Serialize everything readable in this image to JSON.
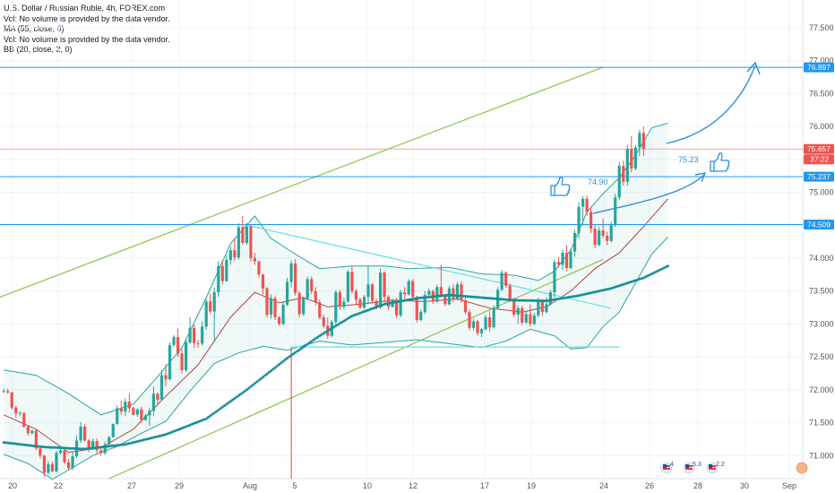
{
  "legend": {
    "title": "U.S. Dollar / Russian Ruble, 4h, FOREX.com",
    "vol1": "Vol: No volume is provided by the data vendor.",
    "ma": "MA (55, close, 0)",
    "vol2": "Vol: No volume is provided by the data vendor.",
    "bb": "BB (20, close, 2, 0)"
  },
  "colors": {
    "up": "#26a69a",
    "down": "#ef5350",
    "hline": "#2196f3",
    "price_line": "#f7a1a0",
    "channel": "#8bc34a",
    "bb_band": "#26a69a",
    "bb_basis": "#b0433a",
    "ma_dots": "#1a8f96",
    "triangle": "#66dde3",
    "arrow": "#2e8fd6",
    "thumb": "#2e8fd6",
    "grid": "#f0f3fa",
    "axis_text": "#50535e"
  },
  "chart_data": {
    "type": "candlestick",
    "symbol": "U.S. Dollar / Russian Ruble",
    "interval": "4h",
    "ylim": [
      70.65,
      77.92
    ],
    "y_ticks": [
      "77.500",
      "77.000",
      "76.500",
      "76.000",
      "75.500",
      "75.000",
      "74.500",
      "74.000",
      "73.500",
      "73.000",
      "72.500",
      "72.000",
      "71.500",
      "71.000"
    ],
    "x_ticks": [
      "20",
      "22",
      "27",
      "29",
      "Aug",
      "5",
      "10",
      "12",
      "17",
      "19",
      "24",
      "26",
      "28",
      "30",
      "Sep"
    ],
    "horizontal_levels": [
      {
        "label": "76.897",
        "value": 76.897,
        "kind": "line"
      },
      {
        "label": "75.657",
        "value": 75.657,
        "kind": "price"
      },
      {
        "label": "75.237",
        "value": 75.237,
        "kind": "line"
      },
      {
        "label": "74.509",
        "value": 74.509,
        "kind": "line"
      }
    ],
    "countdown": "37:22",
    "annotations": [
      "74.90",
      "75.23"
    ],
    "event_badges": [
      "4",
      "5.3",
      "2.2"
    ],
    "candles": [
      [
        71.97,
        72.02,
        71.95,
        71.98
      ],
      [
        71.98,
        72.02,
        71.94,
        71.96
      ],
      [
        71.96,
        71.97,
        71.7,
        71.73
      ],
      [
        71.73,
        71.76,
        71.58,
        71.64
      ],
      [
        71.64,
        71.67,
        71.6,
        71.65
      ],
      [
        71.65,
        71.65,
        71.42,
        71.44
      ],
      [
        71.44,
        71.45,
        71.3,
        71.34
      ],
      [
        71.34,
        71.39,
        71.32,
        71.38
      ],
      [
        71.38,
        71.39,
        71.08,
        71.11
      ],
      [
        71.11,
        71.13,
        70.96,
        71.0
      ],
      [
        71.0,
        71.01,
        70.68,
        70.74
      ],
      [
        70.74,
        70.92,
        70.71,
        70.87
      ],
      [
        70.87,
        70.91,
        70.75,
        70.76
      ],
      [
        70.76,
        71.08,
        70.74,
        71.04
      ],
      [
        71.04,
        71.15,
        71.02,
        71.08
      ],
      [
        71.08,
        71.09,
        70.87,
        70.9
      ],
      [
        70.9,
        70.95,
        70.78,
        70.81
      ],
      [
        70.81,
        71.05,
        70.78,
        70.99
      ],
      [
        70.99,
        71.31,
        70.96,
        71.23
      ],
      [
        71.23,
        71.51,
        71.19,
        71.44
      ],
      [
        71.44,
        71.48,
        71.21,
        71.23
      ],
      [
        71.23,
        71.25,
        71.05,
        71.11
      ],
      [
        71.11,
        71.26,
        71.08,
        71.22
      ],
      [
        71.22,
        71.26,
        71.03,
        71.08
      ],
      [
        71.08,
        71.12,
        71.0,
        71.04
      ],
      [
        71.04,
        71.21,
        71.01,
        71.17
      ],
      [
        71.17,
        71.3,
        71.13,
        71.28
      ],
      [
        71.28,
        71.49,
        71.27,
        71.48
      ],
      [
        71.48,
        71.76,
        71.47,
        71.72
      ],
      [
        71.72,
        71.84,
        71.62,
        71.67
      ],
      [
        71.67,
        71.87,
        71.6,
        71.82
      ],
      [
        71.82,
        71.94,
        71.65,
        71.72
      ],
      [
        71.72,
        71.74,
        71.61,
        71.62
      ],
      [
        71.62,
        71.72,
        71.59,
        71.7
      ],
      [
        71.7,
        71.74,
        71.5,
        71.54
      ],
      [
        71.54,
        71.64,
        71.53,
        71.61
      ],
      [
        71.61,
        71.73,
        71.45,
        71.68
      ],
      [
        71.68,
        72.05,
        71.6,
        71.94
      ],
      [
        71.94,
        71.96,
        71.78,
        71.85
      ],
      [
        71.85,
        72.3,
        71.83,
        72.22
      ],
      [
        72.22,
        72.39,
        72.05,
        72.16
      ],
      [
        72.16,
        72.72,
        72.14,
        72.68
      ],
      [
        72.68,
        72.83,
        72.65,
        72.8
      ],
      [
        72.8,
        72.93,
        72.5,
        72.55
      ],
      [
        72.55,
        72.62,
        72.24,
        72.3
      ],
      [
        72.3,
        72.76,
        72.27,
        72.72
      ],
      [
        72.72,
        73.1,
        72.7,
        72.94
      ],
      [
        72.94,
        72.99,
        72.63,
        72.71
      ],
      [
        72.71,
        72.76,
        72.64,
        72.7
      ],
      [
        72.7,
        73.04,
        72.67,
        72.96
      ],
      [
        72.96,
        73.38,
        72.91,
        73.34
      ],
      [
        73.34,
        73.46,
        73.15,
        73.19
      ],
      [
        73.19,
        73.55,
        72.73,
        73.48
      ],
      [
        73.48,
        73.95,
        73.41,
        73.88
      ],
      [
        73.88,
        73.97,
        73.6,
        73.65
      ],
      [
        73.65,
        74.04,
        73.64,
        73.97
      ],
      [
        73.97,
        74.17,
        73.9,
        74.12
      ],
      [
        74.12,
        74.3,
        73.96,
        74.01
      ],
      [
        74.01,
        74.53,
        73.98,
        74.47
      ],
      [
        74.47,
        74.64,
        74.2,
        74.23
      ],
      [
        74.23,
        74.53,
        74.2,
        74.48
      ],
      [
        74.48,
        74.5,
        73.95,
        74.0
      ],
      [
        74.0,
        74.08,
        73.9,
        73.95
      ],
      [
        73.95,
        73.96,
        73.7,
        73.75
      ],
      [
        73.75,
        73.76,
        73.45,
        73.54
      ],
      [
        73.54,
        73.56,
        73.1,
        73.14
      ],
      [
        73.14,
        73.45,
        73.08,
        73.39
      ],
      [
        73.39,
        73.43,
        73.06,
        73.1
      ],
      [
        73.1,
        73.12,
        72.97,
        73.0
      ],
      [
        73.0,
        73.33,
        72.98,
        73.29
      ],
      [
        73.29,
        73.7,
        73.27,
        73.64
      ],
      [
        73.64,
        73.96,
        73.55,
        73.92
      ],
      [
        73.92,
        73.98,
        73.43,
        73.47
      ],
      [
        73.47,
        73.5,
        73.1,
        73.15
      ],
      [
        73.15,
        73.42,
        73.12,
        73.39
      ],
      [
        73.39,
        73.72,
        73.36,
        73.68
      ],
      [
        73.68,
        73.72,
        73.45,
        73.5
      ],
      [
        73.5,
        73.56,
        73.28,
        73.33
      ],
      [
        73.33,
        73.37,
        73.07,
        73.1
      ],
      [
        73.1,
        73.14,
        72.93,
        72.97
      ],
      [
        72.97,
        73.1,
        72.77,
        72.82
      ],
      [
        72.82,
        73.06,
        72.8,
        73.03
      ],
      [
        73.03,
        73.52,
        72.97,
        73.48
      ],
      [
        73.48,
        73.52,
        73.21,
        73.26
      ],
      [
        73.26,
        73.4,
        73.22,
        73.34
      ],
      [
        73.34,
        73.82,
        73.32,
        73.79
      ],
      [
        73.79,
        73.88,
        73.46,
        73.5
      ],
      [
        73.5,
        73.53,
        73.3,
        73.37
      ],
      [
        73.37,
        73.4,
        73.22,
        73.25
      ],
      [
        73.25,
        73.44,
        73.22,
        73.41
      ],
      [
        73.41,
        73.88,
        73.3,
        73.6
      ],
      [
        73.6,
        73.62,
        73.31,
        73.35
      ],
      [
        73.35,
        73.38,
        73.22,
        73.25
      ],
      [
        73.25,
        73.84,
        73.23,
        73.78
      ],
      [
        73.78,
        73.8,
        73.32,
        73.41
      ],
      [
        73.41,
        73.44,
        73.21,
        73.26
      ],
      [
        73.26,
        73.38,
        73.25,
        73.36
      ],
      [
        73.36,
        73.4,
        73.09,
        73.13
      ],
      [
        73.13,
        73.52,
        73.1,
        73.48
      ],
      [
        73.48,
        73.56,
        73.38,
        73.45
      ],
      [
        73.45,
        73.68,
        73.43,
        73.65
      ],
      [
        73.65,
        73.68,
        73.38,
        73.41
      ],
      [
        73.41,
        73.43,
        73.02,
        73.06
      ],
      [
        73.06,
        73.22,
        73.04,
        73.18
      ],
      [
        73.18,
        73.5,
        73.15,
        73.44
      ],
      [
        73.44,
        73.54,
        73.38,
        73.5
      ],
      [
        73.5,
        73.52,
        73.3,
        73.34
      ],
      [
        73.34,
        73.6,
        73.32,
        73.56
      ],
      [
        73.56,
        73.9,
        73.4,
        73.43
      ],
      [
        73.43,
        73.45,
        73.27,
        73.3
      ],
      [
        73.3,
        73.58,
        73.28,
        73.54
      ],
      [
        73.54,
        73.6,
        73.33,
        73.38
      ],
      [
        73.38,
        73.64,
        73.36,
        73.6
      ],
      [
        73.6,
        73.65,
        73.32,
        73.36
      ],
      [
        73.36,
        73.42,
        73.15,
        73.18
      ],
      [
        73.18,
        73.22,
        72.9,
        72.94
      ],
      [
        72.94,
        73.08,
        72.9,
        73.04
      ],
      [
        73.04,
        73.06,
        72.82,
        72.86
      ],
      [
        72.86,
        72.94,
        72.8,
        72.92
      ],
      [
        72.92,
        73.14,
        72.9,
        73.1
      ],
      [
        73.1,
        73.2,
        72.88,
        72.95
      ],
      [
        72.95,
        73.28,
        72.93,
        73.24
      ],
      [
        73.24,
        73.56,
        73.22,
        73.52
      ],
      [
        73.52,
        73.82,
        73.5,
        73.78
      ],
      [
        73.78,
        73.8,
        73.55,
        73.58
      ],
      [
        73.58,
        73.62,
        73.33,
        73.36
      ],
      [
        73.36,
        73.4,
        73.1,
        73.14
      ],
      [
        73.14,
        73.28,
        73.0,
        73.24
      ],
      [
        73.24,
        73.28,
        72.98,
        73.02
      ],
      [
        73.02,
        73.2,
        73.0,
        73.15
      ],
      [
        73.15,
        73.3,
        72.96,
        73.0
      ],
      [
        73.0,
        73.17,
        72.98,
        73.13
      ],
      [
        73.13,
        73.4,
        73.1,
        73.35
      ],
      [
        73.35,
        73.38,
        73.12,
        73.18
      ],
      [
        73.18,
        73.4,
        73.16,
        73.3
      ],
      [
        73.3,
        73.52,
        73.28,
        73.48
      ],
      [
        73.48,
        73.98,
        73.4,
        73.94
      ],
      [
        73.94,
        74.02,
        73.86,
        73.9
      ],
      [
        73.9,
        74.13,
        73.82,
        74.08
      ],
      [
        74.08,
        74.2,
        73.8,
        73.85
      ],
      [
        73.85,
        74.15,
        73.83,
        74.1
      ],
      [
        74.1,
        74.43,
        74.02,
        74.38
      ],
      [
        74.38,
        74.85,
        74.3,
        74.78
      ],
      [
        74.78,
        74.94,
        74.5,
        74.9
      ],
      [
        74.9,
        74.95,
        74.65,
        74.7
      ],
      [
        74.7,
        74.78,
        74.38,
        74.45
      ],
      [
        74.45,
        74.5,
        74.15,
        74.2
      ],
      [
        74.2,
        74.48,
        74.18,
        74.42
      ],
      [
        74.42,
        74.6,
        74.3,
        74.34
      ],
      [
        74.34,
        74.4,
        74.2,
        74.26
      ],
      [
        74.26,
        74.55,
        74.24,
        74.5
      ],
      [
        74.5,
        74.98,
        74.47,
        74.92
      ],
      [
        74.92,
        75.46,
        74.88,
        75.4
      ],
      [
        75.4,
        75.48,
        75.1,
        75.16
      ],
      [
        75.16,
        75.72,
        75.1,
        75.66
      ],
      [
        75.66,
        75.85,
        75.3,
        75.36
      ],
      [
        75.36,
        75.72,
        75.33,
        75.68
      ],
      [
        75.68,
        75.95,
        75.55,
        75.9
      ],
      [
        75.9,
        76.0,
        75.55,
        75.66
      ]
    ],
    "bb_upper": [
      [
        0,
        72.3
      ],
      [
        8,
        72.22
      ],
      [
        16,
        71.94
      ],
      [
        24,
        71.62
      ],
      [
        32,
        71.78
      ],
      [
        38,
        72.2
      ],
      [
        44,
        72.64
      ],
      [
        50,
        73.4
      ],
      [
        56,
        74.22
      ],
      [
        62,
        74.64
      ],
      [
        66,
        74.3
      ],
      [
        72,
        74.06
      ],
      [
        78,
        73.84
      ],
      [
        86,
        73.88
      ],
      [
        94,
        73.88
      ],
      [
        100,
        73.84
      ],
      [
        110,
        73.86
      ],
      [
        118,
        73.76
      ],
      [
        126,
        73.74
      ],
      [
        132,
        73.66
      ],
      [
        136,
        73.8
      ],
      [
        140,
        74.12
      ],
      [
        144,
        74.7
      ],
      [
        148,
        74.98
      ],
      [
        152,
        75.22
      ],
      [
        156,
        75.56
      ],
      [
        160,
        75.98
      ],
      [
        164,
        76.05
      ]
    ],
    "bb_lower": [
      [
        0,
        71.02
      ],
      [
        6,
        70.88
      ],
      [
        12,
        70.64
      ],
      [
        16,
        70.78
      ],
      [
        22,
        71.0
      ],
      [
        28,
        71.14
      ],
      [
        34,
        71.34
      ],
      [
        40,
        71.52
      ],
      [
        46,
        71.98
      ],
      [
        52,
        72.4
      ],
      [
        58,
        72.56
      ],
      [
        64,
        72.66
      ],
      [
        70,
        72.6
      ],
      [
        78,
        72.74
      ],
      [
        86,
        72.68
      ],
      [
        94,
        72.72
      ],
      [
        102,
        72.76
      ],
      [
        110,
        72.7
      ],
      [
        118,
        72.64
      ],
      [
        124,
        72.74
      ],
      [
        130,
        72.92
      ],
      [
        136,
        72.82
      ],
      [
        140,
        72.62
      ],
      [
        144,
        72.64
      ],
      [
        148,
        72.96
      ],
      [
        152,
        73.18
      ],
      [
        156,
        73.62
      ],
      [
        160,
        74.06
      ],
      [
        164,
        74.32
      ]
    ],
    "bb_basis": [
      [
        0,
        71.62
      ],
      [
        8,
        71.4
      ],
      [
        16,
        71.05
      ],
      [
        24,
        71.12
      ],
      [
        32,
        71.4
      ],
      [
        40,
        71.9
      ],
      [
        48,
        72.38
      ],
      [
        56,
        73.1
      ],
      [
        62,
        73.48
      ],
      [
        68,
        73.32
      ],
      [
        74,
        73.4
      ],
      [
        80,
        73.26
      ],
      [
        88,
        73.3
      ],
      [
        96,
        73.36
      ],
      [
        104,
        73.34
      ],
      [
        112,
        73.38
      ],
      [
        120,
        73.24
      ],
      [
        128,
        73.18
      ],
      [
        134,
        73.26
      ],
      [
        140,
        73.5
      ],
      [
        146,
        73.84
      ],
      [
        152,
        74.08
      ],
      [
        158,
        74.48
      ],
      [
        164,
        74.9
      ]
    ],
    "ma55": [
      [
        0,
        71.2
      ],
      [
        10,
        71.13
      ],
      [
        20,
        71.1
      ],
      [
        30,
        71.17
      ],
      [
        40,
        71.32
      ],
      [
        50,
        71.56
      ],
      [
        60,
        72.0
      ],
      [
        70,
        72.48
      ],
      [
        78,
        72.82
      ],
      [
        86,
        73.12
      ],
      [
        94,
        73.3
      ],
      [
        102,
        73.39
      ],
      [
        110,
        73.44
      ],
      [
        118,
        73.4
      ],
      [
        126,
        73.36
      ],
      [
        134,
        73.35
      ],
      [
        142,
        73.43
      ],
      [
        150,
        73.54
      ],
      [
        158,
        73.7
      ],
      [
        164,
        73.88
      ]
    ],
    "channel_upper": [
      [
        -14,
        73.1
      ],
      [
        148,
        76.9
      ]
    ],
    "channel_lower": [
      [
        26,
        70.65
      ],
      [
        148,
        73.98
      ]
    ],
    "triangle_upper": [
      [
        60,
        74.5
      ],
      [
        150,
        73.24
      ]
    ],
    "triangle_lower": [
      [
        71,
        72.65
      ],
      [
        152,
        72.65
      ]
    ],
    "red_vline": {
      "index": 71,
      "top": 72.65,
      "bottom": 70.65
    }
  }
}
